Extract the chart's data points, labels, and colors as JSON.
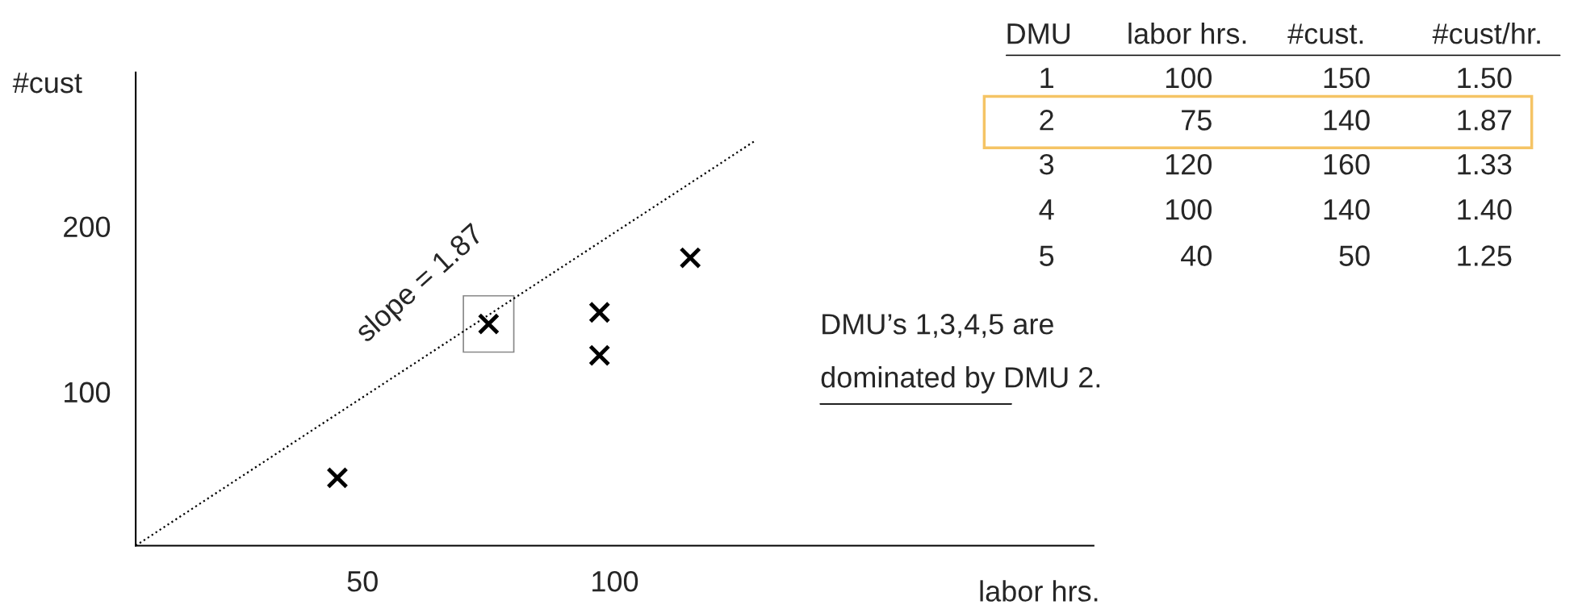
{
  "chart_data": {
    "type": "scatter",
    "xlabel": "labor hrs.",
    "ylabel": "#cust",
    "x": [
      45,
      75,
      97,
      97,
      115
    ],
    "values": [
      48,
      141,
      148,
      122,
      181
    ],
    "color": "#000000",
    "marker": "cross",
    "series": [
      {
        "type": "line",
        "x": [
          5,
          128
        ],
        "values": [
          7,
          252
        ],
        "color": "#000000",
        "line_style": "dotted",
        "marker": "none"
      }
    ],
    "xlim": [
      5,
      195
    ],
    "ylim": [
      7,
      293
    ],
    "xticks": [
      50,
      100
    ],
    "yticks": [
      100,
      200
    ],
    "grid": false,
    "annotations": [
      "DMU",
      "labor hrs.",
      "#cust.",
      "#cust/hr.",
      "1",
      "100",
      "150",
      "1.50",
      "2",
      "75",
      "140",
      "1.87",
      "3",
      "120",
      "160",
      "1.33",
      "4",
      "100",
      "140",
      "1.40",
      "5",
      "40",
      "50",
      "1.25",
      "DMU’s 1,3,4,5 are",
      "dominated by DMU 2.",
      "slope = 1.87"
    ]
  }
}
